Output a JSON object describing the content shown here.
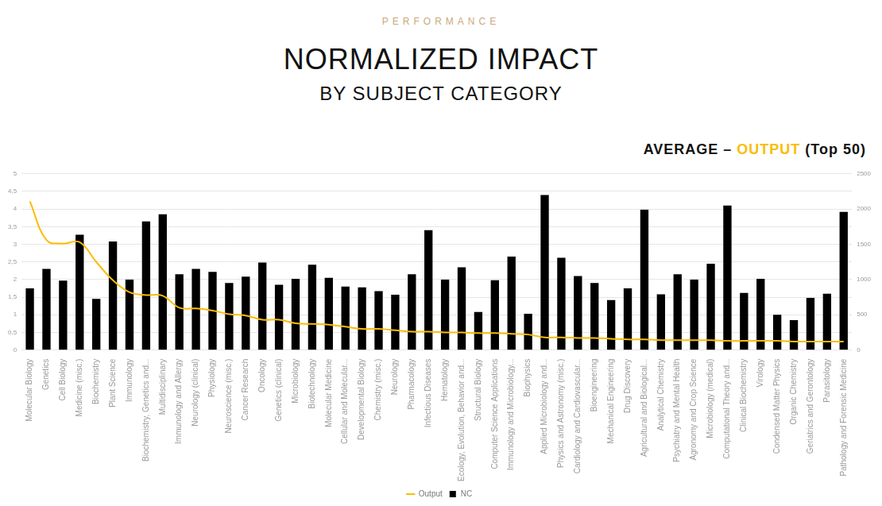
{
  "chart_data": {
    "type": "bar",
    "title": "NORMALIZED IMPACT",
    "subtitle": "BY SUBJECT CATEGORY",
    "annotations": [
      "PERFORMANCE",
      "AVERAGE – OUTPUT (Top 50)"
    ],
    "categories": [
      "Molecular Biology",
      "Genetics",
      "Cell Biology",
      "Medicine (misc.)",
      "Biochemistry",
      "Plant Science",
      "Immunology",
      "Biochemistry, Genetics and...",
      "Multidisciplinary",
      "Immunology and Allergy",
      "Neurology (clinical)",
      "Physiology",
      "Neuroscience (misc.)",
      "Cancer Research",
      "Oncology",
      "Genetics (clinical)",
      "Microbiology",
      "Biotechnology",
      "Molecular Medicine",
      "Cellular and Molecular...",
      "Developmental Biology",
      "Chemistry (misc.)",
      "Neurology",
      "Pharmacology",
      "Infectious Diseases",
      "Hematology",
      "Ecology, Evolution, Behavior and...",
      "Structural Biology",
      "Computer Science Applications",
      "Immunology and Microbiology...",
      "Biophysics",
      "Applied Microbiology and...",
      "Physics and Astronomy (misc.)",
      "Cardiology and Cardiovascular...",
      "Bioengineering",
      "Mechanical Engineering",
      "Drug Discovery",
      "Agricultural and Biological...",
      "Analytical Chemistry",
      "Psychiatry and Mental Health",
      "Agronomy and Crop Science",
      "Microbiology (medical)",
      "Computational Theory and...",
      "Clinical Biochemistry",
      "Virology",
      "Condensed Matter Physics",
      "Organic Chemistry",
      "Geriatrics and Gerontology",
      "Parasitology",
      "Pathology and Forensic Medicine"
    ],
    "series": [
      {
        "name": "NC",
        "type": "bar",
        "color": "#000000",
        "axis": "y",
        "values": [
          1.75,
          2.3,
          1.97,
          3.27,
          1.45,
          3.08,
          2.0,
          3.65,
          3.85,
          2.15,
          2.3,
          2.22,
          1.9,
          2.08,
          2.48,
          1.85,
          2.02,
          2.42,
          2.05,
          1.8,
          1.78,
          1.67,
          1.57,
          2.15,
          3.4,
          2.0,
          2.35,
          1.08,
          1.98,
          2.65,
          1.03,
          4.4,
          2.62,
          2.1,
          1.9,
          1.42,
          1.75,
          3.98,
          1.58,
          2.15,
          2.0,
          2.45,
          4.1,
          1.62,
          2.02,
          1.0,
          0.85,
          1.48,
          1.6,
          3.92
        ]
      },
      {
        "name": "Output",
        "type": "line",
        "color": "#fbbc05",
        "axis": "y2",
        "line_style": "solid",
        "values": [
          2110,
          1560,
          1510,
          1530,
          1250,
          990,
          820,
          780,
          770,
          600,
          590,
          560,
          510,
          490,
          430,
          430,
          380,
          370,
          360,
          330,
          300,
          300,
          280,
          260,
          260,
          250,
          250,
          240,
          240,
          230,
          220,
          180,
          180,
          170,
          170,
          160,
          150,
          150,
          140,
          140,
          140,
          140,
          130,
          130,
          130,
          130,
          120,
          120,
          120,
          120
        ]
      }
    ],
    "ylim": [
      0,
      5
    ],
    "yticks": [
      0,
      {
        "value": 0.5,
        "label": "0,5"
      },
      1,
      {
        "value": 1.5,
        "label": "1,5"
      },
      2,
      {
        "value": 2.5,
        "label": "2,5"
      },
      3,
      {
        "value": 3.5,
        "label": "3,5"
      },
      4,
      {
        "value": 4.5,
        "label": "4,5"
      },
      5
    ],
    "y2lim": [
      0,
      2500
    ],
    "y2ticks": [
      0,
      500,
      1000,
      1500,
      2000,
      2500
    ],
    "grid": true,
    "legend": "bottom"
  }
}
